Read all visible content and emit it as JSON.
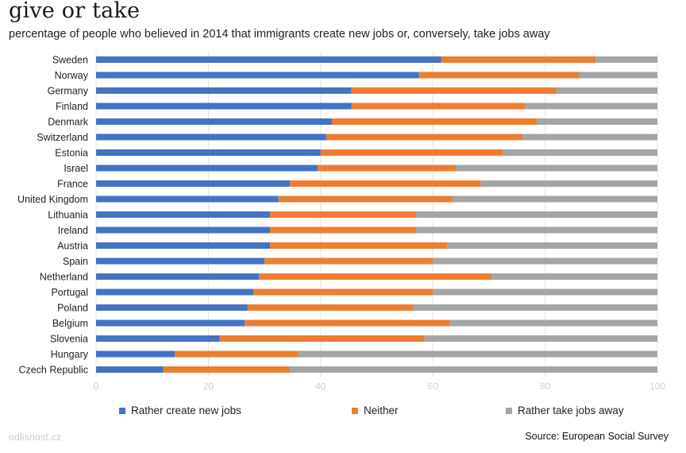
{
  "chart_data": {
    "type": "bar",
    "orientation": "horizontal",
    "stacked": true,
    "title": "give or take",
    "subtitle": "percentage of people who believed in 2014 that immigrants create new jobs or, conversely, take jobs away",
    "categories": [
      "Sweden",
      "Norway",
      "Germany",
      "Finland",
      "Denmark",
      "Switzerland",
      "Estonia",
      "Israel",
      "France",
      "United Kingdom",
      "Lithuania",
      "Ireland",
      "Austria",
      "Spain",
      "Netherland",
      "Portugal",
      "Poland",
      "Belgium",
      "Slovenia",
      "Hungary",
      "Czech Republic"
    ],
    "series": [
      {
        "name": "Rather create new jobs",
        "color": "#4472c4",
        "values": [
          61.5,
          57.5,
          45.5,
          45.5,
          42,
          41,
          40,
          39.5,
          34.5,
          32.5,
          31,
          31,
          31,
          30,
          29,
          28,
          27,
          26.5,
          22,
          14,
          12
        ]
      },
      {
        "name": "Neither",
        "color": "#ed7d31",
        "values": [
          27.5,
          28.5,
          36.5,
          31,
          36.5,
          35,
          32.5,
          24.5,
          34,
          31,
          26,
          26,
          31.5,
          30,
          41.5,
          32,
          29.5,
          36.5,
          36.5,
          22,
          22.5
        ]
      },
      {
        "name": "Rather take jobs away",
        "color": "#a5a5a5",
        "values": [
          11,
          14,
          18,
          23.5,
          21.5,
          24,
          27.5,
          36,
          31.5,
          36.5,
          43,
          43,
          37.5,
          40,
          29.5,
          40,
          43.5,
          37,
          41.5,
          64,
          65.5
        ]
      }
    ],
    "x_ticks": [
      "0",
      "20",
      "40",
      "60",
      "80",
      "100"
    ],
    "xlim": [
      0,
      100
    ],
    "grid": true,
    "legend_position": "bottom"
  },
  "footer": {
    "watermark": "odlisnost.cz",
    "source": "Source: European Social Survey"
  }
}
